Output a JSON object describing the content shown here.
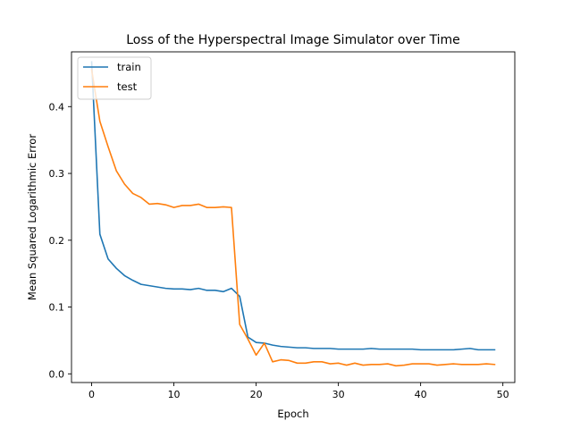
{
  "chart_data": {
    "type": "line",
    "title": "Loss of the Hyperspectral Image Simulator over Time",
    "xlabel": "Epoch",
    "ylabel": "Mean Squared Logarithmic Error",
    "xlim": [
      -2.45,
      51.45
    ],
    "ylim": [
      -0.013,
      0.482
    ],
    "xticks": [
      0,
      10,
      20,
      30,
      40,
      50
    ],
    "xtick_labels": [
      "0",
      "10",
      "20",
      "30",
      "40",
      "50"
    ],
    "yticks": [
      0.0,
      0.1,
      0.2,
      0.3,
      0.4
    ],
    "ytick_labels": [
      "0.0",
      "0.1",
      "0.2",
      "0.3",
      "0.4"
    ],
    "grid": false,
    "legend_position": "top-left",
    "x": [
      0,
      1,
      2,
      3,
      4,
      5,
      6,
      7,
      8,
      9,
      10,
      11,
      12,
      13,
      14,
      15,
      16,
      17,
      18,
      19,
      20,
      21,
      22,
      23,
      24,
      25,
      26,
      27,
      28,
      29,
      30,
      31,
      32,
      33,
      34,
      35,
      36,
      37,
      38,
      39,
      40,
      41,
      42,
      43,
      44,
      45,
      46,
      47,
      48,
      49
    ],
    "series": [
      {
        "name": "train",
        "color": "#1f77b4",
        "values": [
          0.467,
          0.209,
          0.172,
          0.158,
          0.147,
          0.14,
          0.134,
          0.132,
          0.13,
          0.128,
          0.127,
          0.127,
          0.126,
          0.128,
          0.125,
          0.125,
          0.123,
          0.128,
          0.116,
          0.055,
          0.047,
          0.046,
          0.043,
          0.041,
          0.04,
          0.039,
          0.039,
          0.038,
          0.038,
          0.038,
          0.037,
          0.037,
          0.037,
          0.037,
          0.038,
          0.037,
          0.037,
          0.037,
          0.037,
          0.037,
          0.036,
          0.036,
          0.036,
          0.036,
          0.036,
          0.037,
          0.038,
          0.036,
          0.036,
          0.036
        ]
      },
      {
        "name": "test",
        "color": "#ff7f0e",
        "values": [
          0.455,
          0.378,
          0.34,
          0.304,
          0.284,
          0.27,
          0.264,
          0.254,
          0.255,
          0.253,
          0.249,
          0.252,
          0.252,
          0.254,
          0.249,
          0.249,
          0.25,
          0.249,
          0.074,
          0.052,
          0.028,
          0.046,
          0.018,
          0.021,
          0.02,
          0.016,
          0.016,
          0.018,
          0.018,
          0.015,
          0.016,
          0.013,
          0.016,
          0.013,
          0.014,
          0.014,
          0.015,
          0.012,
          0.013,
          0.015,
          0.015,
          0.015,
          0.013,
          0.014,
          0.015,
          0.014,
          0.014,
          0.014,
          0.015,
          0.014
        ]
      }
    ]
  }
}
